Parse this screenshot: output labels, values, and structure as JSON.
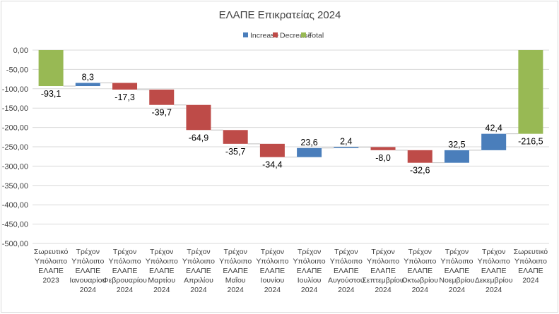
{
  "chart_data": {
    "type": "waterfall",
    "title": "ΕΛΑΠΕ Επικρατείας 2024",
    "legend": [
      {
        "label": "Increase",
        "color": "#4a7ebb"
      },
      {
        "label": "Decrease",
        "color": "#be4b48"
      },
      {
        "label": "Total",
        "color": "#98b954"
      }
    ],
    "legend_position": "top",
    "y_ticks": [
      "0,00",
      "-50,00",
      "-100,00",
      "-150,00",
      "-200,00",
      "-250,00",
      "-300,00",
      "-350,00",
      "-400,00",
      "-450,00",
      "-500,00"
    ],
    "ylim": [
      -500,
      0
    ],
    "grid": true,
    "categories": [
      [
        "Σωρευτικό",
        "Υπόλοιπο",
        "ΕΛΑΠΕ",
        "2023"
      ],
      [
        "Τρέχον",
        "Υπόλοιπο",
        "ΕΛΑΠΕ",
        "Ιανουαρίου",
        "2024"
      ],
      [
        "Τρέχον",
        "Υπόλοιπο",
        "ΕΛΑΠΕ",
        "Φεβρουαρίου",
        "2024"
      ],
      [
        "Τρέχον",
        "Υπόλοιπο",
        "ΕΛΑΠΕ",
        "Μαρτίου",
        "2024"
      ],
      [
        "Τρέχον",
        "Υπόλοιπο",
        "ΕΛΑΠΕ",
        "Απριλίου",
        "2024"
      ],
      [
        "Τρέχον",
        "Υπόλοιπο",
        "ΕΛΑΠΕ",
        "Μαΐου",
        "2024"
      ],
      [
        "Τρέχον",
        "Υπόλοιπο",
        "ΕΛΑΠΕ",
        "Ιουνίου",
        "2024"
      ],
      [
        "Τρέχον",
        "Υπόλοιπο",
        "ΕΛΑΠΕ",
        "Ιουλίου",
        "2024"
      ],
      [
        "Τρέχον",
        "Υπόλοιπο",
        "ΕΛΑΠΕ",
        "Αυγούστου",
        "2024"
      ],
      [
        "Τρέχον",
        "Υπόλοιπο",
        "ΕΛΑΠΕ",
        "Σεπτεμβρίου",
        "2024"
      ],
      [
        "Τρέχον",
        "Υπόλοιπο",
        "ΕΛΑΠΕ",
        "Οκτωβρίου",
        "2024"
      ],
      [
        "Τρέχον",
        "Υπόλοιπο",
        "ΕΛΑΠΕ",
        "Νοεμβρίου",
        "2024"
      ],
      [
        "Τρέχον",
        "Υπόλοιπο",
        "ΕΛΑΠΕ",
        "Δεκεμβρίου",
        "2024"
      ],
      [
        "Σωρευτικό",
        "Υπόλοιπο",
        "ΕΛΑΠΕ",
        "2024"
      ]
    ],
    "values": [
      -93.1,
      8.3,
      -17.3,
      -39.7,
      -64.9,
      -35.7,
      -34.4,
      23.6,
      2.4,
      -8.0,
      -32.6,
      32.5,
      42.4,
      -216.5
    ],
    "labels": [
      "-93,1",
      "8,3",
      "-17,3",
      "-39,7",
      "-64,9",
      "-35,7",
      "-34,4",
      "23,6",
      "2,4",
      "-8,0",
      "-32,6",
      "32,5",
      "42,4",
      "-216,5"
    ],
    "kinds": [
      "total",
      "increase",
      "decrease",
      "decrease",
      "decrease",
      "decrease",
      "decrease",
      "increase",
      "increase",
      "decrease",
      "decrease",
      "increase",
      "increase",
      "total"
    ]
  }
}
